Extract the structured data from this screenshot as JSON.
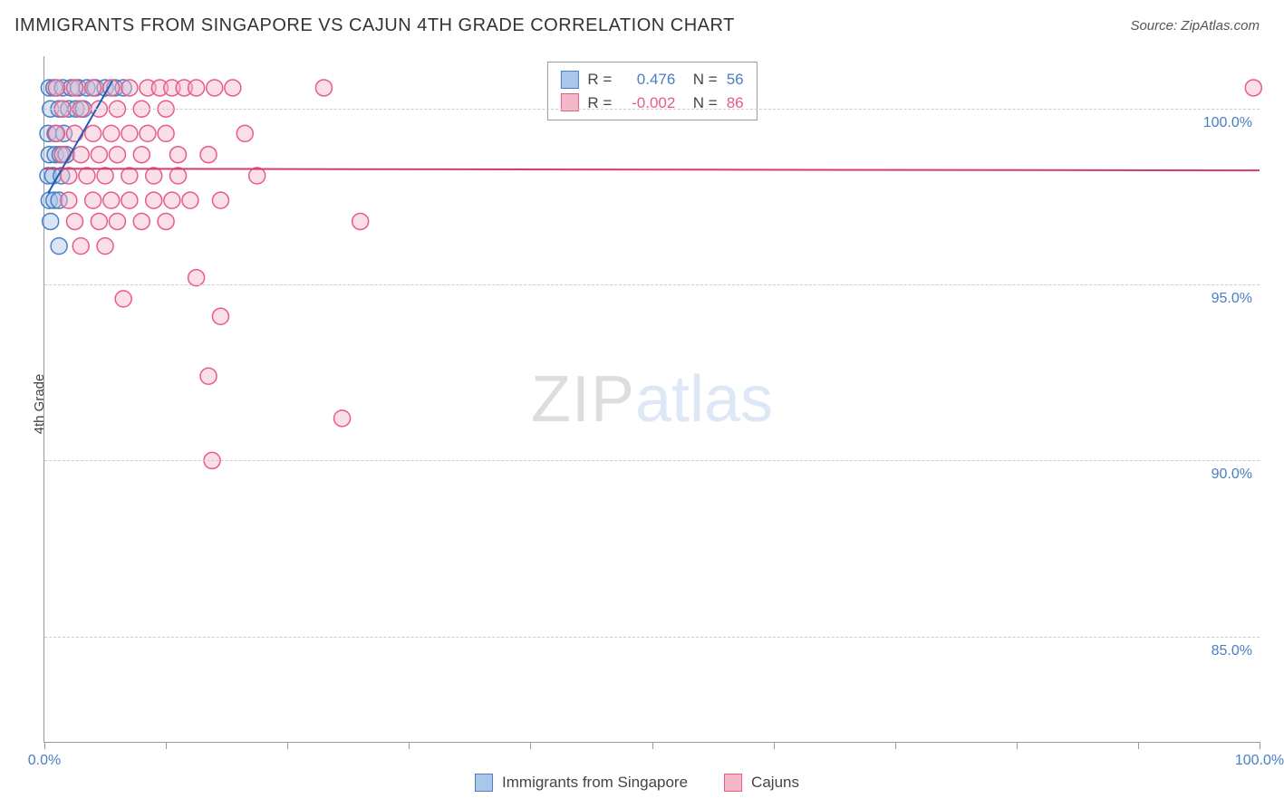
{
  "title": "IMMIGRANTS FROM SINGAPORE VS CAJUN 4TH GRADE CORRELATION CHART",
  "source_label": "Source: ZipAtlas.com",
  "watermark": {
    "part1": "ZIP",
    "part2": "atlas"
  },
  "y_axis_label": "4th Grade",
  "chart": {
    "type": "scatter",
    "background_color": "#ffffff",
    "grid_color": "#cccccc",
    "axis_color": "#999999",
    "xlim": [
      0,
      100
    ],
    "ylim": [
      82,
      101.5
    ],
    "x_ticks": [
      0,
      10,
      20,
      30,
      40,
      50,
      60,
      70,
      80,
      90,
      100
    ],
    "x_tick_labels": {
      "0": "0.0%",
      "100": "100.0%"
    },
    "y_ticks": [
      85,
      90,
      95,
      100
    ],
    "y_tick_labels": {
      "85": "85.0%",
      "90": "90.0%",
      "95": "95.0%",
      "100": "100.0%"
    },
    "tick_label_color": "#4a7ec4",
    "tick_label_fontsize": 16,
    "title_fontsize": 20,
    "marker_radius": 9,
    "marker_stroke_width": 1.5,
    "series": [
      {
        "key": "singapore",
        "label": "Immigrants from Singapore",
        "fill_color": "#aac6e8",
        "stroke_color": "#4a7ec4",
        "fill_opacity": 0.45,
        "R": "0.476",
        "N": "56",
        "stats_value_color": "#4a7ec4",
        "trend": {
          "x1": 0.3,
          "y1": 97.6,
          "x2": 5.6,
          "y2": 100.8,
          "color": "#1b5fb5",
          "width": 2
        },
        "points": [
          [
            0.4,
            100.6
          ],
          [
            0.8,
            100.6
          ],
          [
            1.5,
            100.6
          ],
          [
            2.2,
            100.6
          ],
          [
            2.8,
            100.6
          ],
          [
            3.5,
            100.6
          ],
          [
            4.2,
            100.6
          ],
          [
            5.0,
            100.6
          ],
          [
            5.8,
            100.6
          ],
          [
            6.5,
            100.6
          ],
          [
            0.5,
            100.0
          ],
          [
            1.2,
            100.0
          ],
          [
            2.0,
            100.0
          ],
          [
            2.6,
            100.0
          ],
          [
            3.2,
            100.0
          ],
          [
            0.3,
            99.3
          ],
          [
            0.9,
            99.3
          ],
          [
            1.6,
            99.3
          ],
          [
            0.4,
            98.7
          ],
          [
            0.9,
            98.7
          ],
          [
            1.3,
            98.7
          ],
          [
            1.8,
            98.7
          ],
          [
            0.3,
            98.1
          ],
          [
            0.7,
            98.1
          ],
          [
            1.4,
            98.1
          ],
          [
            0.4,
            97.4
          ],
          [
            0.8,
            97.4
          ],
          [
            1.2,
            97.4
          ],
          [
            0.5,
            96.8
          ],
          [
            1.2,
            96.1
          ]
        ]
      },
      {
        "key": "cajun",
        "label": "Cajuns",
        "fill_color": "#f5b8c9",
        "stroke_color": "#e85a8a",
        "fill_opacity": 0.45,
        "R": "-0.002",
        "N": "86",
        "stats_value_color": "#e85a8a",
        "trend": {
          "x1": 0,
          "y1": 98.3,
          "x2": 100,
          "y2": 98.25,
          "color": "#d63a72",
          "width": 2
        },
        "points": [
          [
            1.0,
            100.6
          ],
          [
            2.5,
            100.6
          ],
          [
            4.0,
            100.6
          ],
          [
            5.5,
            100.6
          ],
          [
            7.0,
            100.6
          ],
          [
            8.5,
            100.6
          ],
          [
            9.5,
            100.6
          ],
          [
            10.5,
            100.6
          ],
          [
            11.5,
            100.6
          ],
          [
            12.5,
            100.6
          ],
          [
            14.0,
            100.6
          ],
          [
            15.5,
            100.6
          ],
          [
            23.0,
            100.6
          ],
          [
            99.5,
            100.6
          ],
          [
            1.5,
            100.0
          ],
          [
            3.0,
            100.0
          ],
          [
            4.5,
            100.0
          ],
          [
            6.0,
            100.0
          ],
          [
            8.0,
            100.0
          ],
          [
            10.0,
            100.0
          ],
          [
            1.0,
            99.3
          ],
          [
            2.5,
            99.3
          ],
          [
            4.0,
            99.3
          ],
          [
            5.5,
            99.3
          ],
          [
            7.0,
            99.3
          ],
          [
            8.5,
            99.3
          ],
          [
            10.0,
            99.3
          ],
          [
            16.5,
            99.3
          ],
          [
            1.5,
            98.7
          ],
          [
            3.0,
            98.7
          ],
          [
            4.5,
            98.7
          ],
          [
            6.0,
            98.7
          ],
          [
            8.0,
            98.7
          ],
          [
            11.0,
            98.7
          ],
          [
            13.5,
            98.7
          ],
          [
            2.0,
            98.1
          ],
          [
            3.5,
            98.1
          ],
          [
            5.0,
            98.1
          ],
          [
            7.0,
            98.1
          ],
          [
            9.0,
            98.1
          ],
          [
            11.0,
            98.1
          ],
          [
            17.5,
            98.1
          ],
          [
            2.0,
            97.4
          ],
          [
            4.0,
            97.4
          ],
          [
            5.5,
            97.4
          ],
          [
            7.0,
            97.4
          ],
          [
            9.0,
            97.4
          ],
          [
            10.5,
            97.4
          ],
          [
            12.0,
            97.4
          ],
          [
            14.5,
            97.4
          ],
          [
            2.5,
            96.8
          ],
          [
            4.5,
            96.8
          ],
          [
            6.0,
            96.8
          ],
          [
            8.0,
            96.8
          ],
          [
            10.0,
            96.8
          ],
          [
            3.0,
            96.1
          ],
          [
            5.0,
            96.1
          ],
          [
            26.0,
            96.8
          ],
          [
            12.5,
            95.2
          ],
          [
            6.5,
            94.6
          ],
          [
            14.5,
            94.1
          ],
          [
            13.5,
            92.4
          ],
          [
            13.8,
            90.0
          ],
          [
            24.5,
            91.2
          ]
        ]
      }
    ],
    "stats_box": {
      "R_label": "R =",
      "N_label": "N ="
    }
  }
}
